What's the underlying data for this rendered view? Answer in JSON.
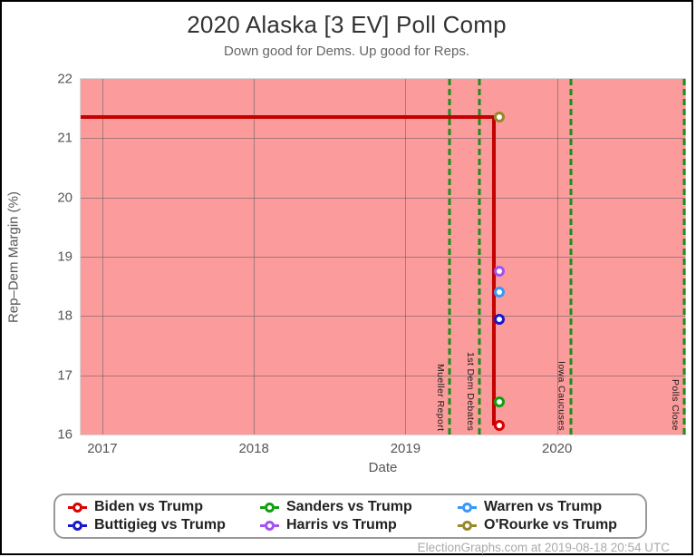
{
  "header": {
    "title": "2020 Alaska [3 EV] Poll Comp",
    "subtitle": "Down good for Dems. Up good for Reps."
  },
  "axes": {
    "x_title": "Date",
    "y_title": "Rep–Dem Margin (%)"
  },
  "footer": {
    "credit": "ElectionGraphs.com at 2019-08-18 20:54 UTC"
  },
  "colors": {
    "plot_bg": "#FB9B9B",
    "grid": "rgba(85,85,85,0.5)",
    "event_green": "#1E8C1E",
    "biden_red": "#C40000"
  },
  "chart_data": {
    "type": "line",
    "title": "2020 Alaska [3 EV] Poll Comp",
    "subtitle": "Down good for Dems. Up good for Reps.",
    "xlabel": "Date",
    "ylabel": "Rep–Dem Margin (%)",
    "x_domain": [
      2016.857,
      2020.845
    ],
    "ylim": [
      16,
      22
    ],
    "grid": true,
    "x_ticks": [
      {
        "label": "2017",
        "value": 2017
      },
      {
        "label": "2018",
        "value": 2018
      },
      {
        "label": "2019",
        "value": 2019
      },
      {
        "label": "2020",
        "value": 2020
      }
    ],
    "y_ticks": [
      22,
      21,
      20,
      19,
      18,
      17,
      16
    ],
    "events": [
      {
        "label": "Mueller Report",
        "x": 2019.29
      },
      {
        "label": "1st Dem Debates",
        "x": 2019.487
      },
      {
        "label": "Iowa Caucuses",
        "x": 2020.09
      },
      {
        "label": "Polls Close",
        "x": 2020.838
      }
    ],
    "step_line": {
      "name": "Biden vs Trump margin history",
      "color": "#C40000",
      "points": [
        [
          2016.857,
          21.35
        ],
        [
          2019.583,
          21.35
        ],
        [
          2019.583,
          16.15
        ],
        [
          2019.62,
          16.15
        ]
      ]
    },
    "series": [
      {
        "name": "Biden vs Trump",
        "color": "#D80000",
        "x": 2019.62,
        "value": 16.15
      },
      {
        "name": "Buttigieg vs Trump",
        "color": "#1717CC",
        "x": 2019.62,
        "value": 17.95
      },
      {
        "name": "Sanders vs Trump",
        "color": "#0FA00F",
        "x": 2019.62,
        "value": 16.55
      },
      {
        "name": "Harris vs Trump",
        "color": "#A352F0",
        "x": 2019.62,
        "value": 18.75
      },
      {
        "name": "Warren vs Trump",
        "color": "#3898F8",
        "x": 2019.62,
        "value": 18.4
      },
      {
        "name": "O'Rourke vs Trump",
        "color": "#97882B",
        "x": 2019.62,
        "value": 21.35
      }
    ],
    "legend_position": "bottom"
  },
  "legend": {
    "entries": [
      {
        "label": "Biden vs Trump",
        "color": "#D80000"
      },
      {
        "label": "Buttigieg vs Trump",
        "color": "#1717CC"
      },
      {
        "label": "Sanders vs Trump",
        "color": "#0FA00F"
      },
      {
        "label": "Harris vs Trump",
        "color": "#A352F0"
      },
      {
        "label": "Warren vs Trump",
        "color": "#3898F8"
      },
      {
        "label": "O'Rourke vs Trump",
        "color": "#97882B"
      }
    ]
  }
}
